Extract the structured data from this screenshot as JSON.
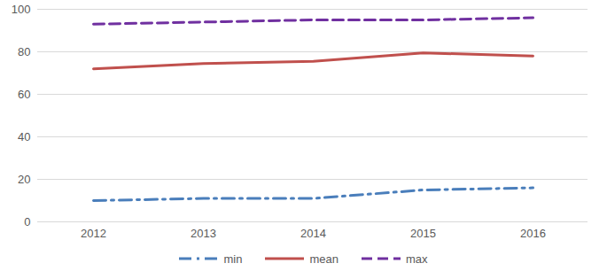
{
  "chart_data": {
    "type": "line",
    "categories": [
      "2012",
      "2013",
      "2014",
      "2015",
      "2016"
    ],
    "series": [
      {
        "name": "min",
        "color": "#4a7ebb",
        "line_style": "dash_dot",
        "values": [
          10,
          11,
          11,
          15,
          16
        ]
      },
      {
        "name": "mean",
        "color": "#c0504d",
        "line_style": "solid",
        "values": [
          72,
          74.5,
          75.5,
          79.5,
          78
        ]
      },
      {
        "name": "max",
        "color": "#7030a0",
        "line_style": "dashed",
        "values": [
          93,
          94,
          95,
          95,
          96
        ]
      }
    ],
    "ylim": [
      0,
      100
    ],
    "yticks": [
      0,
      20,
      40,
      60,
      80,
      100
    ],
    "grid": true,
    "legend": "bottom"
  }
}
